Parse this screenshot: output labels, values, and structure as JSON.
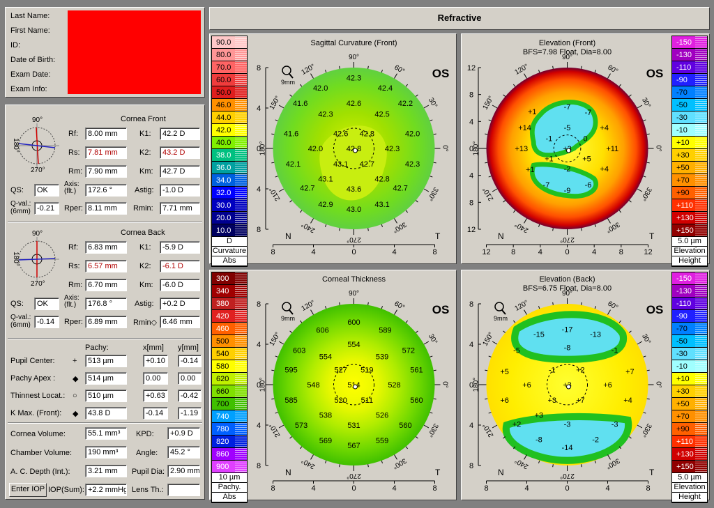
{
  "header": {
    "title": "Refractive"
  },
  "patient": {
    "last_name": "Last Name:",
    "first_name": "First Name:",
    "id": "ID:",
    "dob": "Date of Birth:",
    "exam_date": "Exam Date:",
    "exam_info": "Exam Info:"
  },
  "front": {
    "title": "Cornea Front",
    "rf_l": "Rf:",
    "rf": "8.00 mm",
    "k1_l": "K1:",
    "k1": "42.2 D",
    "rs_l": "Rs:",
    "rs": "7.81 mm",
    "k2_l": "K2:",
    "k2": "43.2 D",
    "rm_l": "Rm:",
    "rm": "7.90 mm",
    "km_l": "Km:",
    "km": "42.7 D",
    "qs_l": "QS:",
    "qs": "OK",
    "axis_l1": "Axis:",
    "axis_l2": "(flt.)",
    "axis": "172.6 °",
    "astig_l": "Astig:",
    "astig": "-1.0 D",
    "qval_l1": "Q-val.:",
    "qval_l2": "(6mm)",
    "qval": "-0.21",
    "rper_l": "Rper:",
    "rper": "8.11 mm",
    "rmin_l": "Rmin:",
    "rmin": "7.71 mm",
    "deg90": "90°",
    "deg180": "180°",
    "deg270": "270°"
  },
  "back": {
    "title": "Cornea Back",
    "rf_l": "Rf:",
    "rf": "6.83 mm",
    "k1_l": "K1:",
    "k1": "-5.9 D",
    "rs_l": "Rs:",
    "rs": "6.57 mm",
    "k2_l": "K2:",
    "k2": "-6.1 D",
    "rm_l": "Rm:",
    "rm": "6.70 mm",
    "km_l": "Km:",
    "km": "-6.0 D",
    "qs_l": "QS:",
    "qs": "OK",
    "axis_l1": "Axis:",
    "axis_l2": "(flt.)",
    "axis": "176.8 °",
    "astig_l": "Astig:",
    "astig": "+0.2 D",
    "qval_l1": "Q-val.:",
    "qval_l2": "(6mm)",
    "qval": "-0.14",
    "rper_l": "Rper:",
    "rper": "6.89 mm",
    "rmin_l": "Rmin◇",
    "rmin": "6.46 mm",
    "deg90": "90°",
    "deg180": "180°",
    "deg270": "270°"
  },
  "pachy": {
    "col_pachy": "Pachy:",
    "col_x": "x[mm]",
    "col_y": "y[mm]",
    "rows": [
      {
        "label": "Pupil Center:",
        "sym": "+",
        "pachy": "513 µm",
        "x": "+0.10",
        "y": "-0.14"
      },
      {
        "label": "Pachy Apex :",
        "sym": "◆",
        "pachy": "514 µm",
        "x": "0.00",
        "y": "0.00"
      },
      {
        "label": "Thinnest Locat.:",
        "sym": "○",
        "pachy": "510 µm",
        "x": "+0.63",
        "y": "-0.42"
      },
      {
        "label": "K Max. (Front):",
        "sym": "◆",
        "pachy": "43.8 D",
        "x": "-0.14",
        "y": "-1.19"
      }
    ]
  },
  "misc": {
    "cv_l": "Cornea Volume:",
    "cv": "55.1 mm³",
    "kpd_l": "KPD:",
    "kpd": "+0.9 D",
    "chv_l": "Chamber Volume:",
    "chv": "190 mm³",
    "angle_l": "Angle:",
    "angle": "45.2 °",
    "acd_l": "A. C. Depth (Int.):",
    "acd": "3.21 mm",
    "pupil_l": "Pupil Dia:",
    "pupil": "2.90 mm",
    "enter_iop": "Enter IOP",
    "iop_l": "IOP(Sum):",
    "iop": "+2.2 mmHg",
    "lens_l": "Lens Th.:",
    "lens": ""
  },
  "maps": {
    "curv": {
      "title": "Sagittal Curvature (Front)",
      "eye": "OS",
      "zoom": "9mm",
      "scale": [
        "90.0",
        "80.0",
        "70.0",
        "60.0",
        "50.0",
        "46.0",
        "44.0",
        "42.0",
        "40.0",
        "38.0",
        "36.0",
        "34.0",
        "32.0",
        "30.0",
        "20.0",
        "10.0"
      ],
      "colors": [
        "#ffc8c8",
        "#ff9696",
        "#ff6464",
        "#f03c3c",
        "#e01e1e",
        "#ff9000",
        "#ffd000",
        "#ffff00",
        "#80f000",
        "#00c080",
        "#00a0a0",
        "#0060e0",
        "#0000ff",
        "#0000c0",
        "#000090",
        "#000060"
      ],
      "foot": [
        "D",
        "Curvature",
        "Abs"
      ],
      "values": [
        {
          "v": "42.3",
          "x": 0,
          "y": -7
        },
        {
          "v": "42.0",
          "x": -3.3,
          "y": -6
        },
        {
          "v": "42.4",
          "x": 3.1,
          "y": -6
        },
        {
          "v": "42.6",
          "x": 0,
          "y": -4.5
        },
        {
          "v": "41.6",
          "x": -5.3,
          "y": -4.5
        },
        {
          "v": "42.2",
          "x": 5.1,
          "y": -4.5
        },
        {
          "v": "42.3",
          "x": -2.8,
          "y": -3.4
        },
        {
          "v": "42.5",
          "x": 2.8,
          "y": -3.4
        },
        {
          "v": "42.6",
          "x": -1.3,
          "y": -1.5
        },
        {
          "v": "42.8",
          "x": 1.3,
          "y": -1.5
        },
        {
          "v": "41.6",
          "x": -6.2,
          "y": -1.5
        },
        {
          "v": "42.0",
          "x": 5.8,
          "y": -1.5
        },
        {
          "v": "42.8",
          "x": 0,
          "y": 0
        },
        {
          "v": "42.0",
          "x": -3.8,
          "y": 0
        },
        {
          "v": "42.3",
          "x": 3.8,
          "y": 0
        },
        {
          "v": "43.1",
          "x": -1.3,
          "y": 1.5
        },
        {
          "v": "42.7",
          "x": 1.3,
          "y": 1.5
        },
        {
          "v": "42.1",
          "x": -6,
          "y": 1.5
        },
        {
          "v": "42.3",
          "x": 5.8,
          "y": 1.5
        },
        {
          "v": "43.1",
          "x": -2.8,
          "y": 3
        },
        {
          "v": "42.8",
          "x": 2.8,
          "y": 3
        },
        {
          "v": "43.6",
          "x": 0,
          "y": 4
        },
        {
          "v": "42.7",
          "x": -4.6,
          "y": 3.9
        },
        {
          "v": "42.7",
          "x": 4.6,
          "y": 3.9
        },
        {
          "v": "42.9",
          "x": -2.8,
          "y": 5.5
        },
        {
          "v": "43.1",
          "x": 2.8,
          "y": 5.5
        },
        {
          "v": "43.0",
          "x": 0,
          "y": 6
        }
      ]
    },
    "elevf": {
      "title": "Elevation (Front)",
      "subtitle": "BFS=7.98 Float, Dia=8.00",
      "eye": "OS",
      "scale": [
        "-150",
        "-130",
        "-110",
        "-90",
        "-70",
        "-50",
        "-30",
        "-10",
        "+10",
        "+30",
        "+50",
        "+70",
        "+90",
        "+110",
        "+130",
        "+150"
      ],
      "colors": [
        "#e020e0",
        "#a000c0",
        "#6000e0",
        "#2020ff",
        "#0080ff",
        "#00c0ff",
        "#60e0ff",
        "#a0ffff",
        "#ffff00",
        "#ffd000",
        "#ffb000",
        "#ff9000",
        "#ff6000",
        "#ff3000",
        "#d00000",
        "#900000"
      ],
      "foot": [
        "5.0 µm",
        "Elevation",
        "Height"
      ],
      "values": [
        {
          "v": "-7",
          "x": 0,
          "y": -6.2
        },
        {
          "v": "-7",
          "x": 3.1,
          "y": -5.4
        },
        {
          "v": "+1",
          "x": -5.2,
          "y": -5.5
        },
        {
          "v": "+14",
          "x": -6.3,
          "y": -3.1
        },
        {
          "v": "-5",
          "x": 0,
          "y": -3.1
        },
        {
          "v": "+4",
          "x": 5.5,
          "y": -3.1
        },
        {
          "v": "-1",
          "x": -2.7,
          "y": -1.5
        },
        {
          "v": "0",
          "x": 2.7,
          "y": -1.5
        },
        {
          "v": "+13",
          "x": -6.8,
          "y": 0
        },
        {
          "v": "+3",
          "x": 0,
          "y": 0
        },
        {
          "v": "+11",
          "x": 6.7,
          "y": 0
        },
        {
          "v": "+1",
          "x": -2.7,
          "y": 1.5
        },
        {
          "v": "+5",
          "x": 2.9,
          "y": 1.5
        },
        {
          "v": "-2",
          "x": 0,
          "y": 3
        },
        {
          "v": "+1",
          "x": -5.5,
          "y": 3.1
        },
        {
          "v": "+4",
          "x": 5.5,
          "y": 3
        },
        {
          "v": "-7",
          "x": -3.1,
          "y": 5.4
        },
        {
          "v": "-6",
          "x": 3.1,
          "y": 5.4
        },
        {
          "v": "-9",
          "x": 0,
          "y": 6.2
        }
      ]
    },
    "thick": {
      "title": "Corneal Thickness",
      "eye": "OS",
      "zoom": "9mm",
      "scale": [
        "300",
        "340",
        "380",
        "420",
        "460",
        "500",
        "540",
        "580",
        "620",
        "660",
        "700",
        "740",
        "780",
        "820",
        "860",
        "900"
      ],
      "colors": [
        "#800000",
        "#a00000",
        "#c02020",
        "#e02020",
        "#ff6000",
        "#ff9000",
        "#ffd000",
        "#ffff00",
        "#c0f000",
        "#80e000",
        "#40c000",
        "#00a0ff",
        "#0060ff",
        "#0020e0",
        "#a000ff",
        "#e040ff"
      ],
      "foot": [
        "10 µm",
        "Pachy.",
        "Abs"
      ],
      "values": [
        {
          "v": "600",
          "x": 0,
          "y": -6.2
        },
        {
          "v": "606",
          "x": -3.1,
          "y": -5.4
        },
        {
          "v": "589",
          "x": 3.1,
          "y": -5.4
        },
        {
          "v": "603",
          "x": -5.4,
          "y": -3.4
        },
        {
          "v": "554",
          "x": 0,
          "y": -4
        },
        {
          "v": "572",
          "x": 5.4,
          "y": -3.4
        },
        {
          "v": "554",
          "x": -2.8,
          "y": -2.8
        },
        {
          "v": "539",
          "x": 2.8,
          "y": -2.8
        },
        {
          "v": "527",
          "x": -1.3,
          "y": -1.5
        },
        {
          "v": "519",
          "x": 1.3,
          "y": -1.5
        },
        {
          "v": "595",
          "x": -6.2,
          "y": -1.5
        },
        {
          "v": "561",
          "x": 6.2,
          "y": -1.5
        },
        {
          "v": "514",
          "x": 0,
          "y": 0
        },
        {
          "v": "548",
          "x": -4,
          "y": 0
        },
        {
          "v": "528",
          "x": 4,
          "y": 0
        },
        {
          "v": "520",
          "x": -1.3,
          "y": 1.5
        },
        {
          "v": "511",
          "x": 1.3,
          "y": 1.5
        },
        {
          "v": "585",
          "x": -6.2,
          "y": 1.5
        },
        {
          "v": "560",
          "x": 6.2,
          "y": 1.5
        },
        {
          "v": "538",
          "x": -2.8,
          "y": 3
        },
        {
          "v": "526",
          "x": 2.8,
          "y": 3
        },
        {
          "v": "573",
          "x": -5.2,
          "y": 4
        },
        {
          "v": "531",
          "x": 0,
          "y": 4
        },
        {
          "v": "560",
          "x": 5.1,
          "y": 4
        },
        {
          "v": "569",
          "x": -2.8,
          "y": 5.5
        },
        {
          "v": "559",
          "x": 2.8,
          "y": 5.5
        },
        {
          "v": "567",
          "x": 0,
          "y": 6
        }
      ]
    },
    "elevb": {
      "title": "Elevation (Back)",
      "subtitle": "BFS=6.75 Float, Dia=8.00",
      "eye": "OS",
      "zoom": "9mm",
      "scale": [
        "-150",
        "-130",
        "-110",
        "-90",
        "-70",
        "-50",
        "-30",
        "-10",
        "+10",
        "+30",
        "+50",
        "+70",
        "+90",
        "+110",
        "+130",
        "+150"
      ],
      "colors": [
        "#e020e0",
        "#a000c0",
        "#6000e0",
        "#2020ff",
        "#0080ff",
        "#00c0ff",
        "#60e0ff",
        "#a0ffff",
        "#ffff00",
        "#ffd000",
        "#ffb000",
        "#ff9000",
        "#ff6000",
        "#ff3000",
        "#d00000",
        "#900000"
      ],
      "foot": [
        "5.0 µm",
        "Elevation",
        "Height"
      ],
      "values": [
        {
          "v": "-17",
          "x": 0,
          "y": -5.5
        },
        {
          "v": "-15",
          "x": -2.8,
          "y": -5
        },
        {
          "v": "-13",
          "x": 2.8,
          "y": -5
        },
        {
          "v": "-5",
          "x": -5,
          "y": -3.4
        },
        {
          "v": "-8",
          "x": 0,
          "y": -3.7
        },
        {
          "v": "-1",
          "x": 4.7,
          "y": -3.4
        },
        {
          "v": "-1",
          "x": -1.5,
          "y": -1.5
        },
        {
          "v": "+2",
          "x": 1.3,
          "y": -1.5
        },
        {
          "v": "+5",
          "x": -6.2,
          "y": -1.3
        },
        {
          "v": "+7",
          "x": 6.2,
          "y": -1.3
        },
        {
          "v": "+6",
          "x": -4,
          "y": 0
        },
        {
          "v": "+3",
          "x": 0,
          "y": 0
        },
        {
          "v": "+6",
          "x": 4,
          "y": 0
        },
        {
          "v": "+6",
          "x": -6.2,
          "y": 1.5
        },
        {
          "v": "+3",
          "x": -1.5,
          "y": 1.5
        },
        {
          "v": "+7",
          "x": 1.3,
          "y": 1.5
        },
        {
          "v": "+4",
          "x": 6,
          "y": 1.5
        },
        {
          "v": "+3",
          "x": -2.8,
          "y": 3
        },
        {
          "v": "-3",
          "x": 0,
          "y": 3.9
        },
        {
          "v": "-3",
          "x": 4.7,
          "y": 3.9
        },
        {
          "v": "+2",
          "x": -5,
          "y": 3.9
        },
        {
          "v": "-8",
          "x": -2.8,
          "y": 5.4
        },
        {
          "v": "-2",
          "x": 2.8,
          "y": 5.4
        },
        {
          "v": "-14",
          "x": 0,
          "y": 6.2
        }
      ]
    }
  },
  "axis": {
    "x": [
      "8",
      "4",
      "0",
      "4",
      "8"
    ],
    "y": [
      "8",
      "4",
      "0",
      "4",
      "8"
    ],
    "x12": [
      "12",
      "8",
      "4",
      "0",
      "4",
      "8",
      "12"
    ],
    "y12": [
      "12",
      "8",
      "4",
      "0",
      "4",
      "8",
      "12"
    ],
    "N": "N",
    "T": "T",
    "ang": [
      "90°",
      "60°",
      "30°",
      "0°",
      "330°",
      "300°",
      "270°",
      "240°",
      "210°",
      "180°",
      "150°",
      "120°"
    ]
  }
}
